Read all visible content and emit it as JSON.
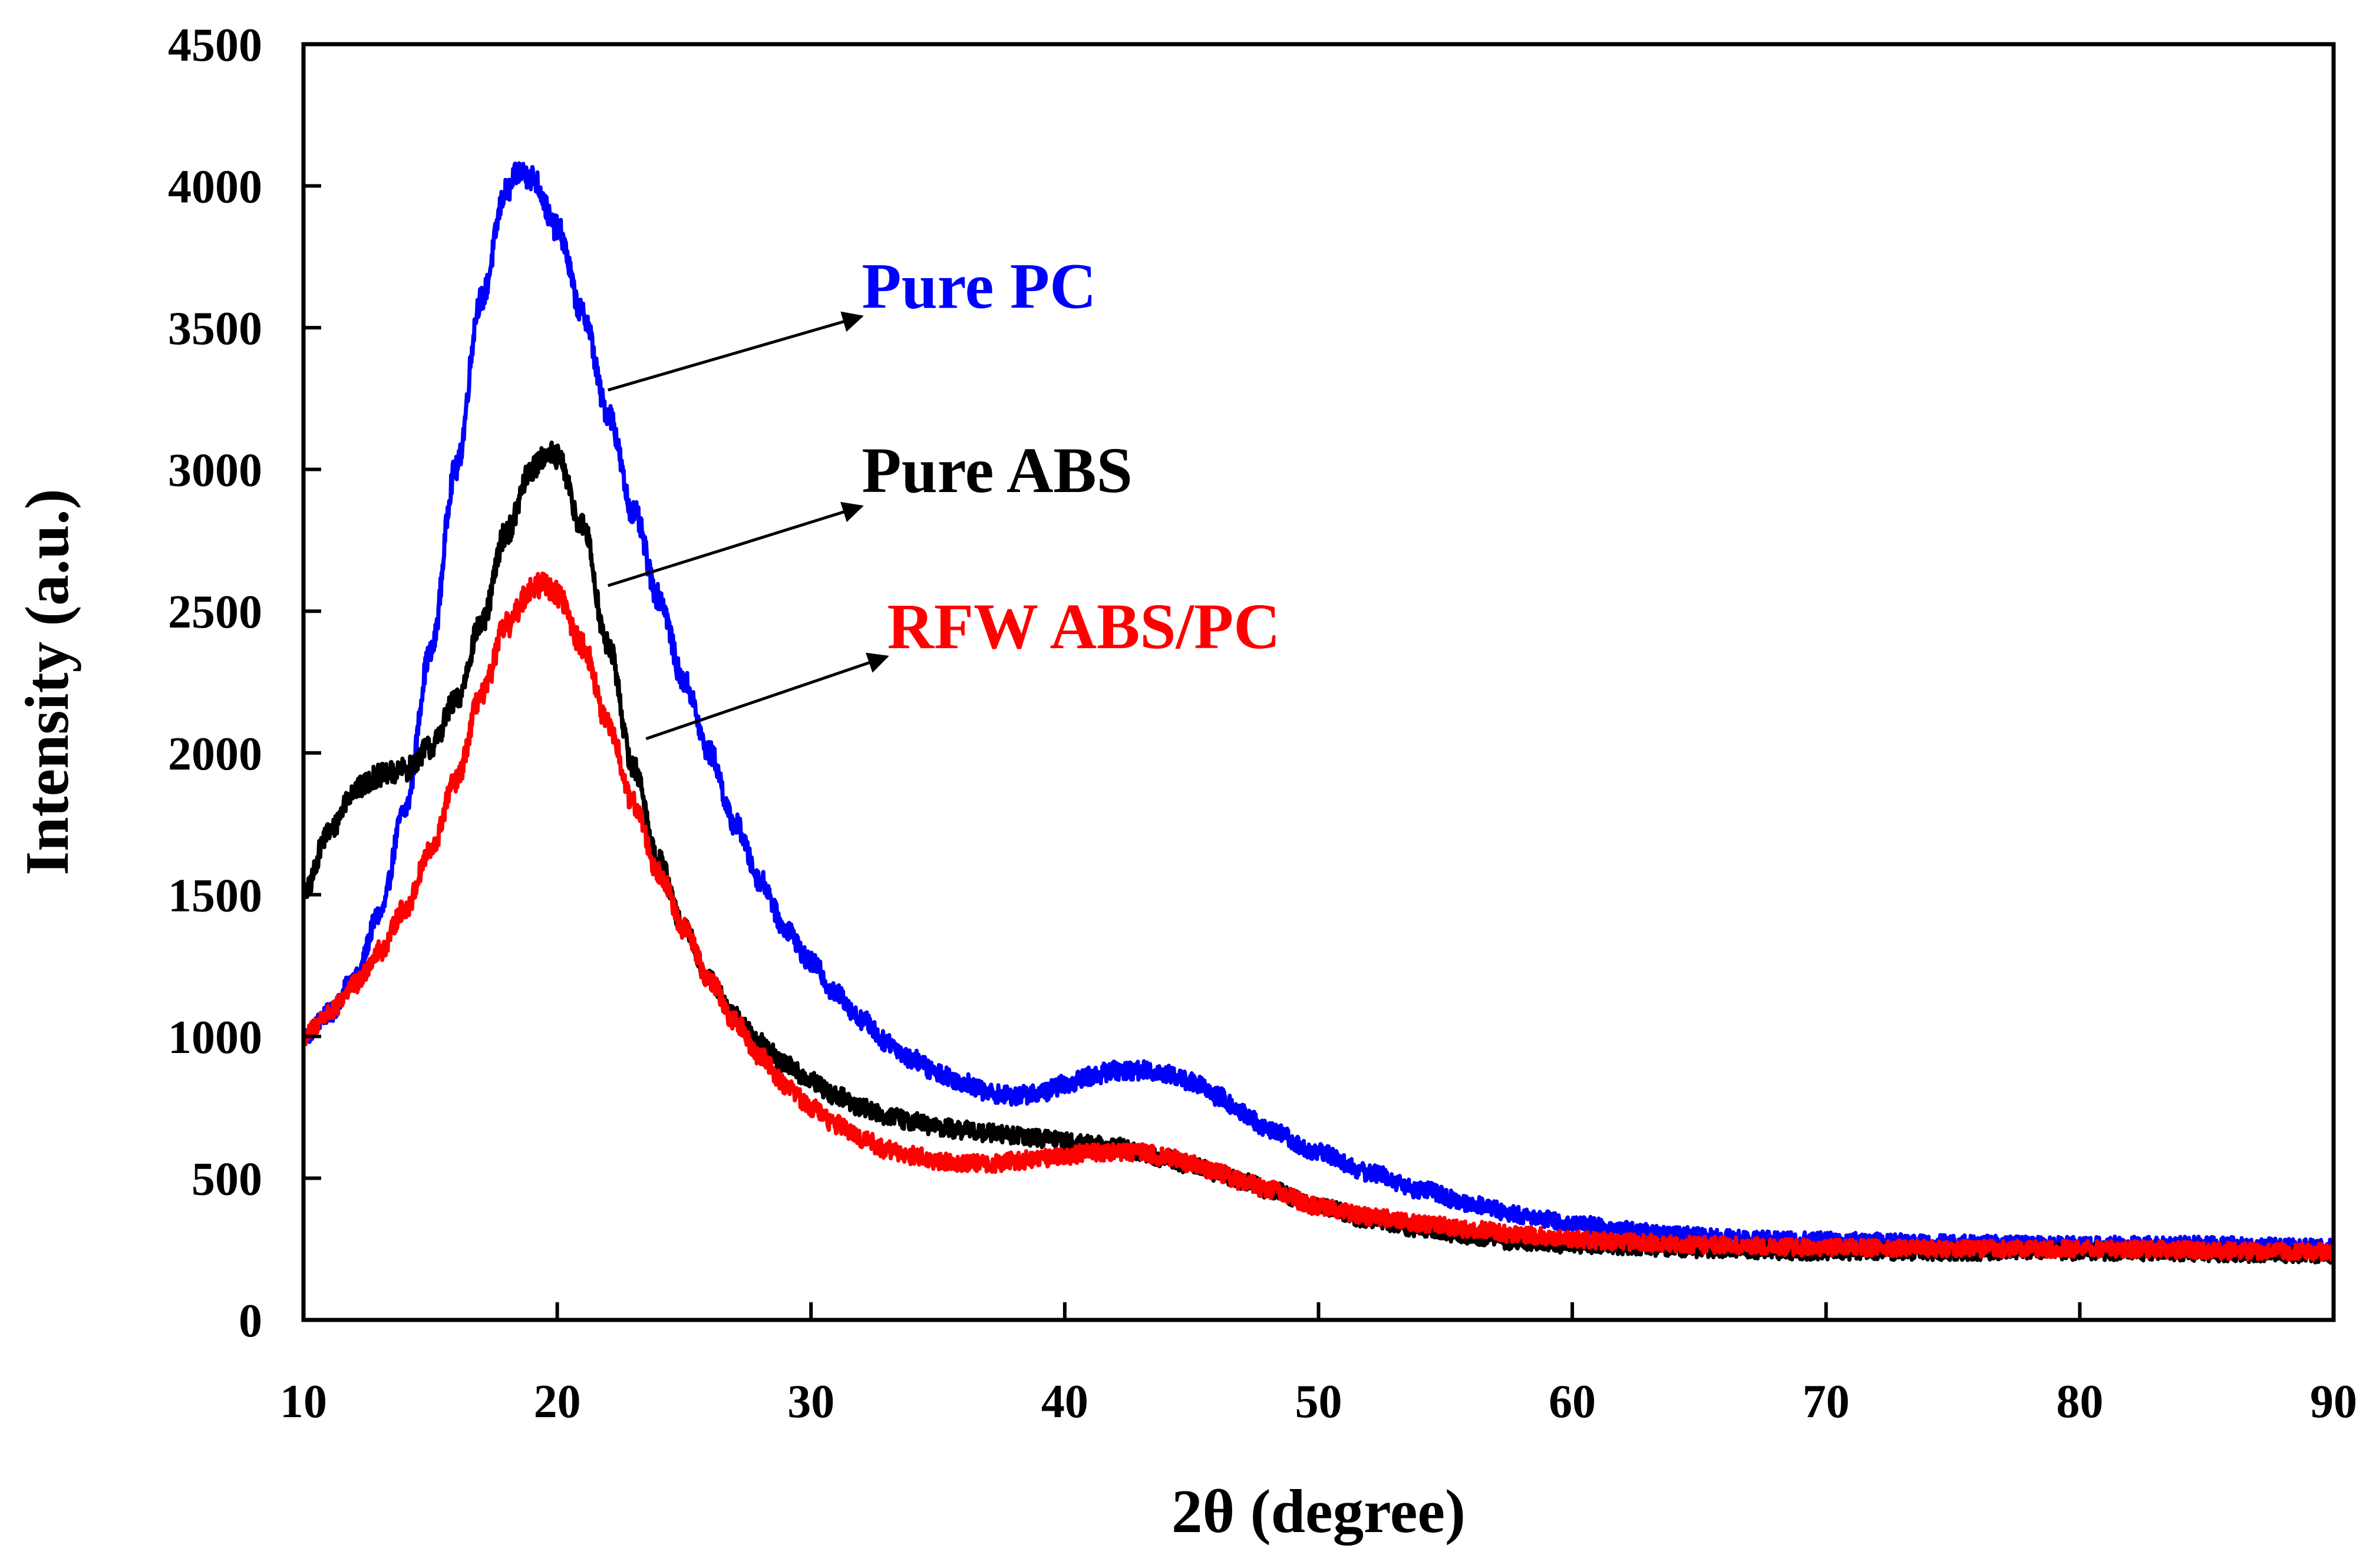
{
  "chart_data": {
    "type": "line",
    "title": "",
    "xlabel": "2θ (degree)",
    "ylabel": "Intensity (a.u.)",
    "xlim": [
      10,
      90
    ],
    "ylim": [
      0,
      4500
    ],
    "xticks": [
      10,
      20,
      30,
      40,
      50,
      60,
      70,
      80,
      90
    ],
    "yticks": [
      0,
      500,
      1000,
      1500,
      2000,
      2500,
      3000,
      3500,
      4000,
      4500
    ],
    "grid": false,
    "series": [
      {
        "name": "Pure PC",
        "color": "#0000ff",
        "noise": 45,
        "points": [
          [
            10,
            1000
          ],
          [
            11,
            1080
          ],
          [
            12,
            1200
          ],
          [
            13,
            1430
          ],
          [
            14,
            1800
          ],
          [
            15,
            2350
          ],
          [
            16,
            3000
          ],
          [
            17,
            3600
          ],
          [
            18,
            3980
          ],
          [
            18.5,
            4050
          ],
          [
            19,
            4030
          ],
          [
            20,
            3850
          ],
          [
            21,
            3550
          ],
          [
            22,
            3200
          ],
          [
            23,
            2850
          ],
          [
            24,
            2550
          ],
          [
            25,
            2250
          ],
          [
            26,
            2000
          ],
          [
            27,
            1750
          ],
          [
            28,
            1550
          ],
          [
            29,
            1380
          ],
          [
            30,
            1260
          ],
          [
            31,
            1150
          ],
          [
            32,
            1060
          ],
          [
            33,
            980
          ],
          [
            34,
            920
          ],
          [
            35,
            870
          ],
          [
            36,
            840
          ],
          [
            37,
            800
          ],
          [
            38,
            790
          ],
          [
            39,
            800
          ],
          [
            40,
            830
          ],
          [
            41,
            860
          ],
          [
            42,
            880
          ],
          [
            43,
            880
          ],
          [
            44,
            870
          ],
          [
            45,
            840
          ],
          [
            46,
            790
          ],
          [
            47,
            730
          ],
          [
            48,
            670
          ],
          [
            50,
            590
          ],
          [
            52,
            520
          ],
          [
            54,
            460
          ],
          [
            56,
            410
          ],
          [
            58,
            370
          ],
          [
            60,
            340
          ],
          [
            62,
            320
          ],
          [
            64,
            300
          ],
          [
            66,
            290
          ],
          [
            70,
            280
          ],
          [
            75,
            270
          ],
          [
            80,
            265
          ],
          [
            85,
            265
          ],
          [
            90,
            255
          ]
        ]
      },
      {
        "name": "Pure ABS",
        "color": "#000000",
        "noise": 45,
        "points": [
          [
            10,
            1500
          ],
          [
            11,
            1720
          ],
          [
            12,
            1870
          ],
          [
            13,
            1920
          ],
          [
            14,
            1940
          ],
          [
            15,
            2020
          ],
          [
            16,
            2180
          ],
          [
            17,
            2450
          ],
          [
            18,
            2780
          ],
          [
            19,
            3000
          ],
          [
            19.6,
            3060
          ],
          [
            20,
            3040
          ],
          [
            21,
            2800
          ],
          [
            22,
            2380
          ],
          [
            23,
            1950
          ],
          [
            24,
            1620
          ],
          [
            25,
            1380
          ],
          [
            26,
            1200
          ],
          [
            27,
            1070
          ],
          [
            28,
            980
          ],
          [
            29,
            900
          ],
          [
            30,
            840
          ],
          [
            31,
            790
          ],
          [
            32,
            750
          ],
          [
            33,
            720
          ],
          [
            34,
            700
          ],
          [
            35,
            680
          ],
          [
            36,
            670
          ],
          [
            37,
            660
          ],
          [
            38,
            650
          ],
          [
            39,
            640
          ],
          [
            40,
            630
          ],
          [
            41,
            620
          ],
          [
            42,
            610
          ],
          [
            43,
            590
          ],
          [
            44,
            570
          ],
          [
            45,
            545
          ],
          [
            46,
            520
          ],
          [
            47,
            490
          ],
          [
            48,
            460
          ],
          [
            50,
            400
          ],
          [
            52,
            355
          ],
          [
            54,
            320
          ],
          [
            56,
            295
          ],
          [
            58,
            275
          ],
          [
            60,
            265
          ],
          [
            65,
            250
          ],
          [
            70,
            240
          ],
          [
            80,
            240
          ],
          [
            90,
            230
          ]
        ]
      },
      {
        "name": "RFW ABS/PC",
        "color": "#ff0000",
        "noise": 45,
        "points": [
          [
            10,
            1000
          ],
          [
            11,
            1080
          ],
          [
            12,
            1180
          ],
          [
            13,
            1300
          ],
          [
            14,
            1450
          ],
          [
            15,
            1650
          ],
          [
            16,
            1900
          ],
          [
            17,
            2200
          ],
          [
            18,
            2450
          ],
          [
            19,
            2580
          ],
          [
            19.5,
            2600
          ],
          [
            20,
            2560
          ],
          [
            21,
            2380
          ],
          [
            22,
            2100
          ],
          [
            23,
            1820
          ],
          [
            24,
            1580
          ],
          [
            25,
            1380
          ],
          [
            26,
            1200
          ],
          [
            27,
            1050
          ],
          [
            28,
            930
          ],
          [
            29,
            830
          ],
          [
            30,
            750
          ],
          [
            31,
            690
          ],
          [
            32,
            640
          ],
          [
            33,
            600
          ],
          [
            34,
            580
          ],
          [
            35,
            560
          ],
          [
            36,
            555
          ],
          [
            37,
            550
          ],
          [
            38,
            560
          ],
          [
            39,
            570
          ],
          [
            40,
            580
          ],
          [
            41,
            590
          ],
          [
            42,
            595
          ],
          [
            43,
            590
          ],
          [
            44,
            575
          ],
          [
            45,
            550
          ],
          [
            46,
            520
          ],
          [
            47,
            490
          ],
          [
            48,
            460
          ],
          [
            50,
            400
          ],
          [
            52,
            365
          ],
          [
            54,
            340
          ],
          [
            56,
            320
          ],
          [
            58,
            300
          ],
          [
            60,
            285
          ],
          [
            62,
            275
          ],
          [
            65,
            265
          ],
          [
            70,
            255
          ],
          [
            80,
            250
          ],
          [
            90,
            240
          ]
        ]
      }
    ],
    "annotations": [
      {
        "text": "Pure PC",
        "color": "#0000ff",
        "series": "Pure PC",
        "x": 32,
        "y": 3570,
        "from": [
          22,
          3280
        ],
        "to": [
          32,
          3540
        ]
      },
      {
        "text": "Pure ABS",
        "color": "#000000",
        "series": "Pure ABS",
        "x": 32,
        "y": 2920,
        "from": [
          22,
          2590
        ],
        "to": [
          32,
          2870
        ]
      },
      {
        "text": "RFW ABS/PC",
        "color": "#ff0000",
        "series": "RFW ABS/PC",
        "x": 33,
        "y": 2370,
        "from": [
          23.5,
          2050
        ],
        "to": [
          33,
          2340
        ]
      }
    ]
  }
}
